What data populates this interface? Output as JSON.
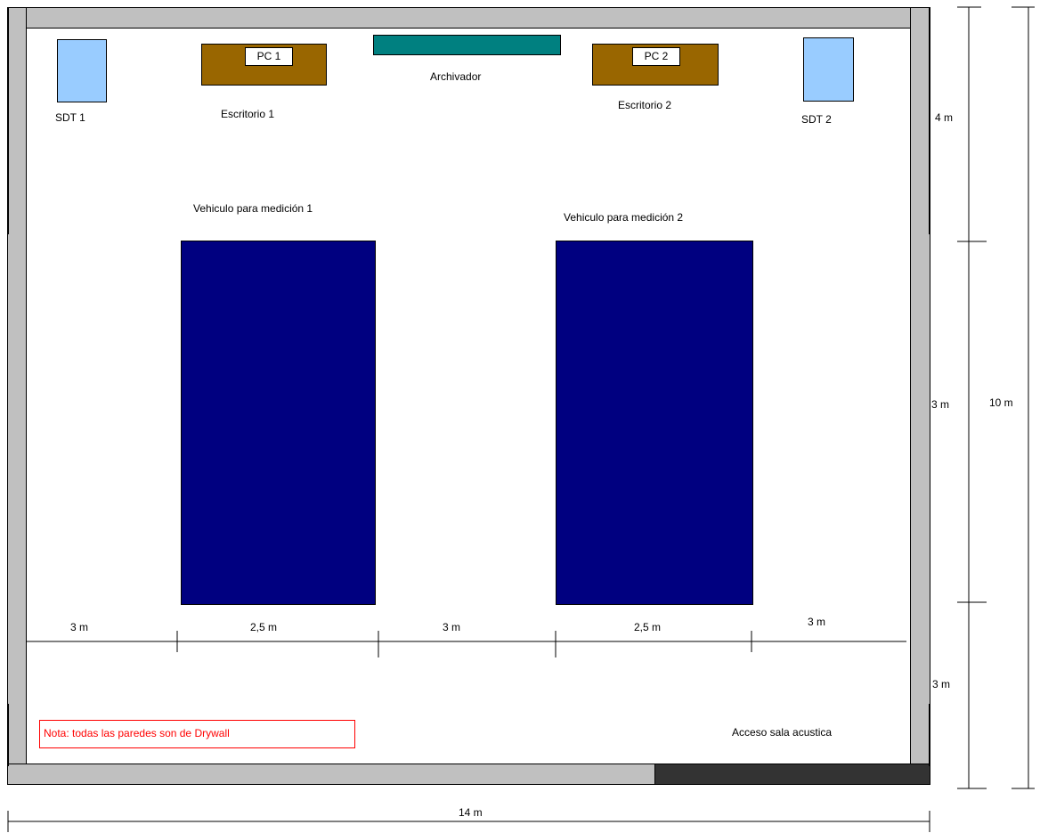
{
  "colors": {
    "wall": "#c0c0c0",
    "door": "#333333",
    "sdt": "#99ccff",
    "desk": "#996600",
    "cabinet": "#008080",
    "vehicle": "#000080",
    "note": "#ff0000"
  },
  "equipment": {
    "sdt1_label": "SDT 1",
    "sdt2_label": "SDT 2",
    "pc1_label": "PC 1",
    "pc2_label": "PC 2",
    "desk1_label": "Escritorio 1",
    "desk2_label": "Escritorio 2",
    "cabinet_label": "Archivador"
  },
  "vehicles": {
    "vehicle1_label": "Vehiculo para medición 1",
    "vehicle2_label": "Vehiculo para medición 2"
  },
  "dimensions": {
    "horizontal": [
      "3 m",
      "2,5 m",
      "3 m",
      "2,5 m",
      "3 m"
    ],
    "vertical": [
      "4 m",
      "3 m",
      "3 m"
    ],
    "total_height": "10 m",
    "total_width": "14 m"
  },
  "note": "Nota: todas las paredes son de Drywall",
  "access_label": "Acceso sala acustica"
}
